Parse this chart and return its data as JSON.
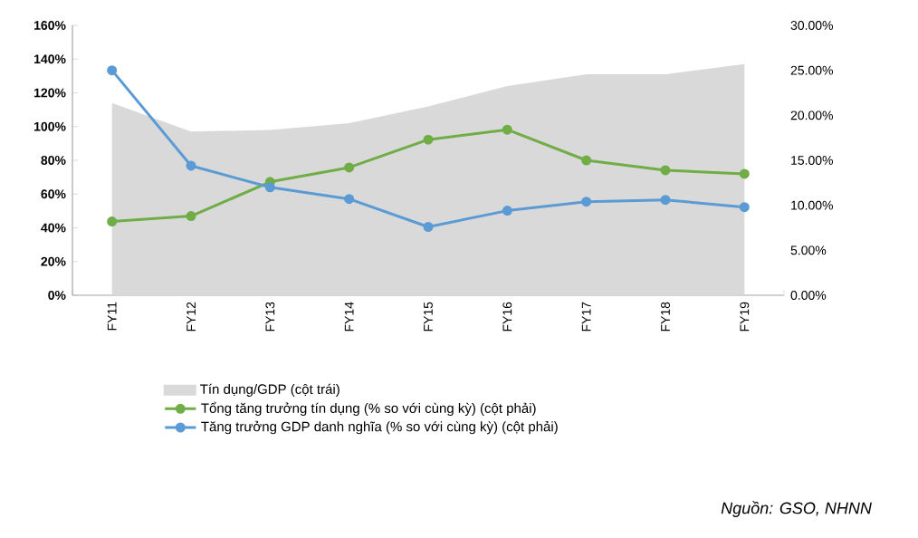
{
  "chart_data": {
    "type": "line",
    "categories": [
      "FY11",
      "FY12",
      "FY13",
      "FY14",
      "FY15",
      "FY16",
      "FY17",
      "FY18",
      "FY19"
    ],
    "series": [
      {
        "name": "Tín dụng/GDP (cột trái)",
        "type": "area",
        "marker": "none",
        "color": "#d9d9d9",
        "values": [
          114,
          97,
          98,
          102,
          112,
          124,
          131,
          131,
          137
        ]
      },
      {
        "name": "Tổng tăng trưởng tín dụng (% so với cùng kỳ) (cột phải)",
        "axis": "y2",
        "color": "#70ad47",
        "values": [
          8.2,
          8.8,
          12.6,
          14.2,
          17.3,
          18.4,
          15.0,
          13.9,
          13.5
        ]
      },
      {
        "name": "Tăng trưởng GDP danh nghĩa (% so với cùng kỳ) (cột phải)",
        "axis": "y2",
        "color": "#5b9bd5",
        "values": [
          25.0,
          14.4,
          12.0,
          10.7,
          7.6,
          9.4,
          10.4,
          10.6,
          9.8
        ]
      }
    ],
    "ylim": [
      0,
      160
    ],
    "yticks": [
      {
        "value": 0,
        "label": "0%"
      },
      {
        "value": 20,
        "label": "20%"
      },
      {
        "value": 40,
        "label": "40%"
      },
      {
        "value": 60,
        "label": "60%"
      },
      {
        "value": 80,
        "label": "80%"
      },
      {
        "value": 100,
        "label": "100%"
      },
      {
        "value": 120,
        "label": "120%"
      },
      {
        "value": 140,
        "label": "140%"
      },
      {
        "value": 160,
        "label": "160%"
      }
    ],
    "y2lim": [
      0,
      30
    ],
    "y2ticks": [
      {
        "value": 0,
        "label": "0.00%"
      },
      {
        "value": 5,
        "label": "5.00%"
      },
      {
        "value": 10,
        "label": "10.00%"
      },
      {
        "value": 15,
        "label": "15.00%"
      },
      {
        "value": 20,
        "label": "20.00%"
      },
      {
        "value": 25,
        "label": "25.00%"
      },
      {
        "value": 30,
        "label": "30.00%"
      }
    ],
    "marker": "circle",
    "legend": "bottom",
    "annotations": [
      "Nguồn: GSO, NHNN"
    ]
  }
}
